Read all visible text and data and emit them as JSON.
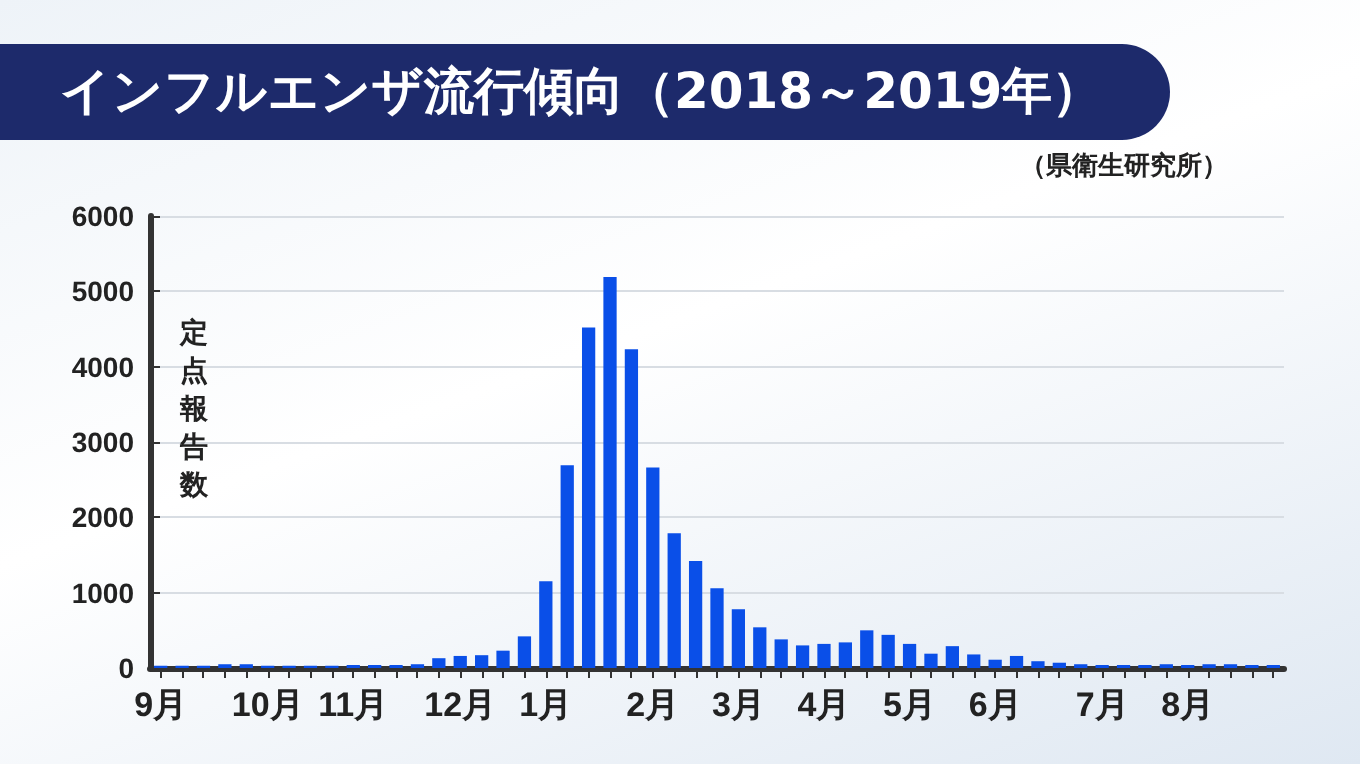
{
  "chart_data": {
    "type": "bar",
    "title": "インフルエンザ流行傾向（2018～2019年）",
    "ylabel": "定点報告数",
    "annotations": [
      "（県衛生研究所）"
    ],
    "categories": [
      "9月",
      null,
      null,
      null,
      null,
      "10月",
      null,
      null,
      null,
      "11月",
      null,
      null,
      null,
      null,
      "12月",
      null,
      null,
      null,
      "1月",
      null,
      null,
      null,
      null,
      "2月",
      null,
      null,
      null,
      "3月",
      null,
      null,
      null,
      "4月",
      null,
      null,
      null,
      "5月",
      null,
      null,
      null,
      "6月",
      null,
      null,
      null,
      null,
      "7月",
      null,
      null,
      null,
      "8月",
      null,
      null,
      null,
      null
    ],
    "values": [
      30,
      30,
      30,
      50,
      50,
      30,
      30,
      30,
      30,
      40,
      40,
      40,
      50,
      130,
      160,
      170,
      230,
      420,
      1150,
      2690,
      4520,
      5190,
      4230,
      2660,
      1790,
      1420,
      1060,
      780,
      540,
      380,
      300,
      320,
      340,
      500,
      440,
      320,
      190,
      290,
      180,
      110,
      160,
      90,
      70,
      50,
      40,
      40,
      40,
      50,
      40,
      50,
      50,
      40,
      40
    ],
    "color": "#0a4fe8",
    "ylim": [
      0,
      6000
    ],
    "yticks": [
      0,
      1000,
      2000,
      3000,
      4000,
      5000,
      6000
    ],
    "grid": "y"
  }
}
